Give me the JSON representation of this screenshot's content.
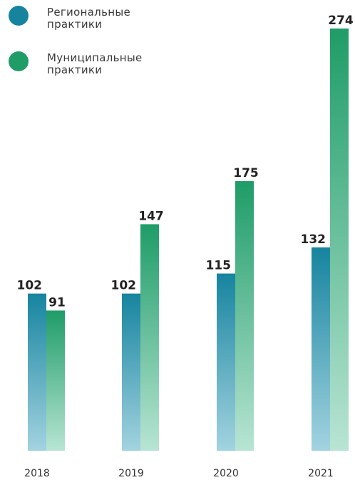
{
  "legend": {
    "items": [
      {
        "label": "Региональные\nпрактики",
        "color": "#16849f"
      },
      {
        "label": "Муниципальные\nпрактики",
        "color": "#1f9c68"
      }
    ]
  },
  "chart_data": {
    "type": "bar",
    "title": "",
    "xlabel": "",
    "ylabel": "",
    "categories": [
      "2018",
      "2019",
      "2020",
      "2021"
    ],
    "series": [
      {
        "name": "Региональные практики",
        "values": [
          102,
          102,
          115,
          132
        ],
        "color": "#16849f",
        "color_light": "#a3d3e0"
      },
      {
        "name": "Муниципальные практики",
        "values": [
          91,
          147,
          175,
          274
        ],
        "color": "#1f9c68",
        "color_light": "#b8e5d4"
      }
    ],
    "ylim": [
      0,
      274
    ],
    "grid": false,
    "legend_position": "top-left",
    "value_labels": true
  }
}
